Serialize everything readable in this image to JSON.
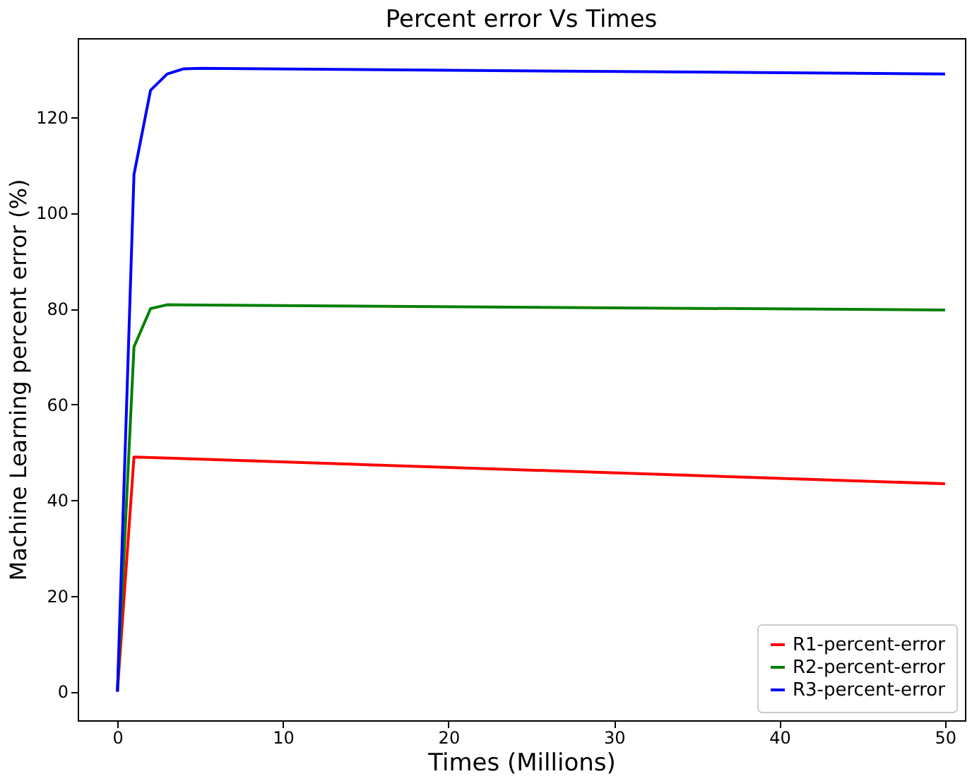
{
  "chart_data": {
    "type": "line",
    "title": "Percent error Vs Times",
    "xlabel": "Times (Millions)",
    "ylabel": "Machine Learning percent error (%)",
    "xlim": [
      -2.4,
      51.2
    ],
    "ylim": [
      -6,
      136.5
    ],
    "xticks": [
      0,
      10,
      20,
      30,
      40,
      50
    ],
    "yticks": [
      0,
      20,
      40,
      60,
      80,
      100,
      120
    ],
    "grid": false,
    "legend": "bottom right",
    "line_style": "solid",
    "marker": "none",
    "series": [
      {
        "name": "R1-percent-error",
        "color": "#ff0000",
        "x": [
          0,
          1,
          50
        ],
        "values": [
          0,
          49,
          43.4
        ]
      },
      {
        "name": "R2-percent-error",
        "color": "#008000",
        "x": [
          0,
          1,
          2,
          3,
          50
        ],
        "values": [
          0,
          72,
          80,
          80.8,
          79.7
        ]
      },
      {
        "name": "R3-percent-error",
        "color": "#0000ff",
        "x": [
          0,
          1,
          2,
          3,
          4,
          5,
          50
        ],
        "values": [
          0,
          108,
          125.6,
          129,
          130.1,
          130.2,
          129
        ]
      }
    ]
  }
}
